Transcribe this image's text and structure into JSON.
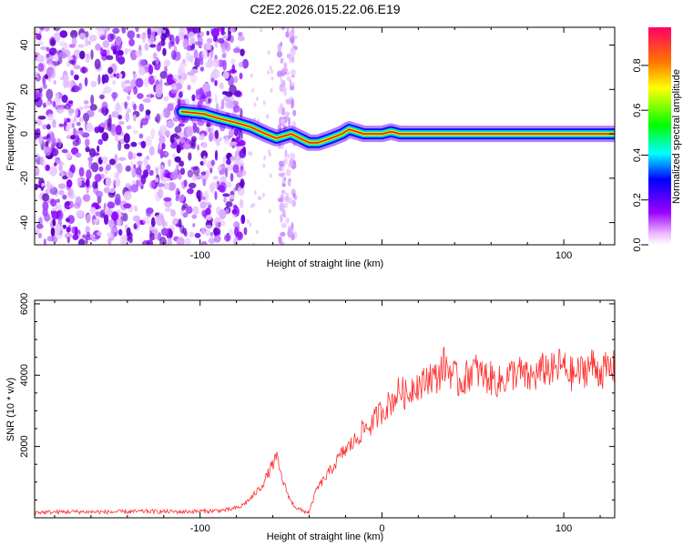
{
  "chart_data": [
    {
      "type": "heatmap",
      "title": "C2E2.2026.015.22.06.E19",
      "xlabel": "Height of straight line (km)",
      "ylabel": "Frequency (Hz)",
      "xlim": [
        -191,
        128
      ],
      "ylim": [
        -50,
        48
      ],
      "xticks": [
        -100,
        0,
        100
      ],
      "xtick_labels": [
        "-100",
        "",
        "100"
      ],
      "yticks": [
        40,
        20,
        0,
        -20,
        -40
      ],
      "colorbar": {
        "label": "Normalized spectral amplitude",
        "range": [
          0,
          0.97
        ],
        "ticks": [
          0.0,
          0.2,
          0.4,
          0.6,
          0.8
        ]
      },
      "ridge": {
        "x": [
          -110,
          -98,
          -90,
          -80,
          -72,
          -64,
          -58,
          -54,
          -50,
          -45,
          -40,
          -35,
          -28,
          -22,
          -18,
          -14,
          -10,
          -5,
          0,
          5,
          10,
          20,
          40,
          60,
          80,
          100,
          128
        ],
        "y": [
          10,
          9,
          7,
          5,
          3,
          0,
          -2,
          -1,
          0,
          -2,
          -4,
          -4,
          -2,
          0,
          2,
          1,
          0,
          0,
          0,
          1,
          0,
          0,
          0,
          0,
          0,
          0,
          0
        ]
      }
    },
    {
      "type": "line",
      "xlabel": "Height of straight line (km)",
      "ylabel": "SNR (10 * v/v)",
      "xlim": [
        -191,
        128
      ],
      "ylim": [
        0,
        6100
      ],
      "xticks": [
        -100,
        0,
        100
      ],
      "yticks": [
        2000,
        4000,
        6000
      ],
      "series": [
        {
          "name": "SNR",
          "color": "#ff3030",
          "x": [
            -191,
            -170,
            -150,
            -130,
            -110,
            -95,
            -85,
            -78,
            -72,
            -66,
            -62,
            -58,
            -55,
            -52,
            -50,
            -47,
            -44,
            -40,
            -36,
            -33,
            -30,
            -26,
            -22,
            -18,
            -14,
            -10,
            -6,
            -2,
            2,
            6,
            10,
            14,
            18,
            22,
            26,
            30,
            34,
            38,
            42,
            46,
            50,
            55,
            60,
            65,
            70,
            75,
            80,
            85,
            90,
            95,
            98,
            100,
            105,
            110,
            115,
            120,
            128
          ],
          "y": [
            150,
            170,
            160,
            180,
            170,
            190,
            220,
            300,
            550,
            900,
            1300,
            1700,
            1100,
            700,
            450,
            280,
            200,
            150,
            800,
            1000,
            1200,
            1500,
            1800,
            2000,
            2200,
            2500,
            2600,
            2900,
            3100,
            3300,
            3600,
            3400,
            3800,
            3700,
            4000,
            3900,
            4300,
            4100,
            3800,
            3900,
            4200,
            4000,
            3900,
            3800,
            4000,
            4100,
            3900,
            4000,
            4200,
            4100,
            4300,
            4200,
            4000,
            4100,
            4300,
            4100,
            4200
          ]
        }
      ]
    }
  ]
}
